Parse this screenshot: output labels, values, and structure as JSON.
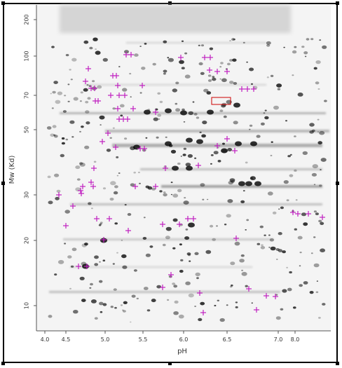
{
  "figure": {
    "x_axis_label": "pH",
    "y_axis_label": "Mw (Kd)",
    "x_ticks": [
      "4.0",
      "4.5",
      "5.0",
      "5.5",
      "6.0",
      "6.5",
      "7.0",
      "8.0"
    ],
    "y_ticks": [
      "200",
      "100",
      "70",
      "50",
      "30",
      "20",
      "10"
    ],
    "marker_color": "#c020c0",
    "highlight_box_color": "#cc0000"
  }
}
